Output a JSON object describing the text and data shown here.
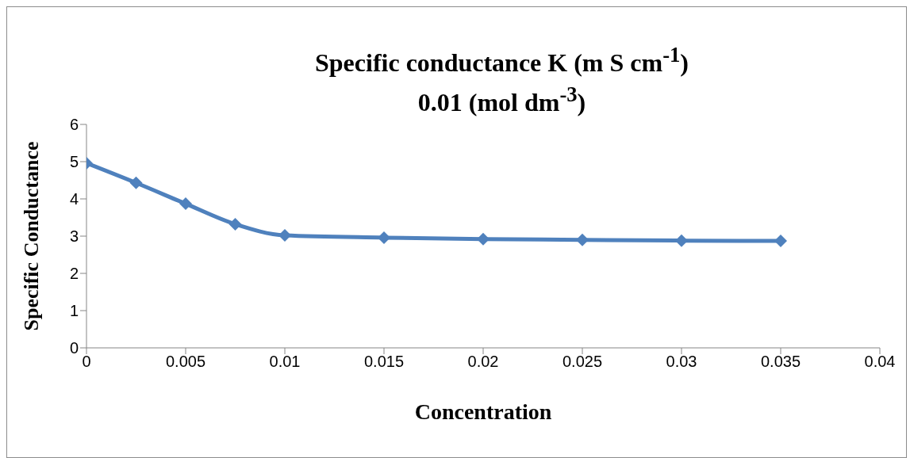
{
  "chart_data": {
    "type": "line",
    "title": "Specific conductance K (m S cm$^{-1}$)",
    "subtitle": "0.01 (mol dm$^{-3}$)",
    "xlabel": "Concentration",
    "ylabel": "Specific Conductance",
    "x": [
      0,
      0.0025,
      0.005,
      0.0075,
      0.01,
      0.015,
      0.02,
      0.025,
      0.03,
      0.035
    ],
    "series": [
      {
        "color": "#4f81bd",
        "values": [
          4.96,
          4.43,
          3.87,
          3.32,
          3.02,
          2.96,
          2.92,
          2.9,
          2.88,
          2.87
        ]
      }
    ],
    "xlim": [
      0,
      0.04
    ],
    "xticks": [
      0,
      0.005,
      0.01,
      0.015,
      0.02,
      0.025,
      0.03,
      0.035,
      0.04
    ],
    "ylim": [
      0,
      6
    ],
    "yticks": [
      0,
      1,
      2,
      3,
      4,
      5,
      6
    ],
    "grid": false,
    "legend": false,
    "marker": "diamond",
    "line_style": "solid"
  }
}
